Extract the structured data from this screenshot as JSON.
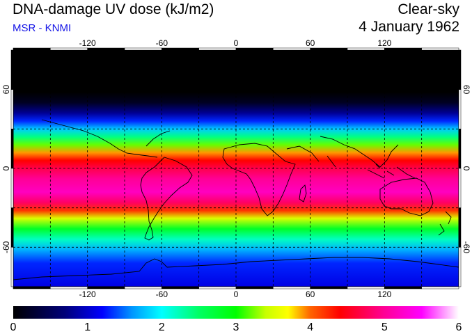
{
  "header": {
    "title": "DNA-damage UV dose (kJ/m2)",
    "source": "MSR - KNMI",
    "condition": "Clear-sky",
    "date": "4 January 1962"
  },
  "colors": {
    "source_text": "#1414e6",
    "background": "#ffffff",
    "gridline": "#000000"
  },
  "map": {
    "projection": "equirectangular",
    "lon_range": [
      -180,
      180
    ],
    "lat_range": [
      -90,
      90
    ],
    "lon_ticks": [
      {
        "value": -120,
        "label": "-120"
      },
      {
        "value": -60,
        "label": "-60"
      },
      {
        "value": 0,
        "label": "0"
      },
      {
        "value": 60,
        "label": "60"
      },
      {
        "value": 120,
        "label": "120"
      }
    ],
    "lat_ticks": [
      {
        "value": 60,
        "label": "60"
      },
      {
        "value": 0,
        "label": "0"
      },
      {
        "value": -60,
        "label": "-60"
      }
    ],
    "dashed_parallels": [
      60,
      30,
      0,
      -30,
      -60
    ],
    "dashed_meridians": [
      -150,
      -120,
      -90,
      -60,
      -30,
      0,
      30,
      60,
      90,
      120,
      150
    ]
  },
  "colorbar": {
    "min": 0,
    "max": 6,
    "tick_labels": [
      "0",
      "1",
      "2",
      "3",
      "4",
      "5",
      "6"
    ],
    "stops": [
      {
        "v": 0.0,
        "color": "#000000"
      },
      {
        "v": 0.7,
        "color": "#00007a"
      },
      {
        "v": 1.2,
        "color": "#0000ff"
      },
      {
        "v": 1.6,
        "color": "#0096ff"
      },
      {
        "v": 2.0,
        "color": "#00ffff"
      },
      {
        "v": 2.5,
        "color": "#00ff64"
      },
      {
        "v": 3.0,
        "color": "#00ff00"
      },
      {
        "v": 3.4,
        "color": "#c8ff00"
      },
      {
        "v": 3.7,
        "color": "#ffff00"
      },
      {
        "v": 4.0,
        "color": "#ff6400"
      },
      {
        "v": 4.4,
        "color": "#ff0000"
      },
      {
        "v": 5.0,
        "color": "#ff0096"
      },
      {
        "v": 5.5,
        "color": "#ff00ff"
      },
      {
        "v": 6.0,
        "color": "#ffffff"
      }
    ]
  },
  "dose_profile": [
    {
      "lat": 90,
      "value": 0
    },
    {
      "lat": 58,
      "value": 0
    },
    {
      "lat": 50,
      "value": 0.2
    },
    {
      "lat": 42,
      "value": 0.8
    },
    {
      "lat": 36,
      "value": 1.3
    },
    {
      "lat": 30,
      "value": 1.8
    },
    {
      "lat": 24,
      "value": 2.4
    },
    {
      "lat": 18,
      "value": 3.2
    },
    {
      "lat": 12,
      "value": 3.9
    },
    {
      "lat": 6,
      "value": 4.4
    },
    {
      "lat": 0,
      "value": 4.7
    },
    {
      "lat": -8,
      "value": 5.0
    },
    {
      "lat": -18,
      "value": 5.2
    },
    {
      "lat": -26,
      "value": 4.8
    },
    {
      "lat": -32,
      "value": 4.2
    },
    {
      "lat": -38,
      "value": 3.5
    },
    {
      "lat": -46,
      "value": 2.8
    },
    {
      "lat": -54,
      "value": 2.2
    },
    {
      "lat": -62,
      "value": 1.7
    },
    {
      "lat": -72,
      "value": 1.3
    },
    {
      "lat": -90,
      "value": 1.1
    }
  ]
}
